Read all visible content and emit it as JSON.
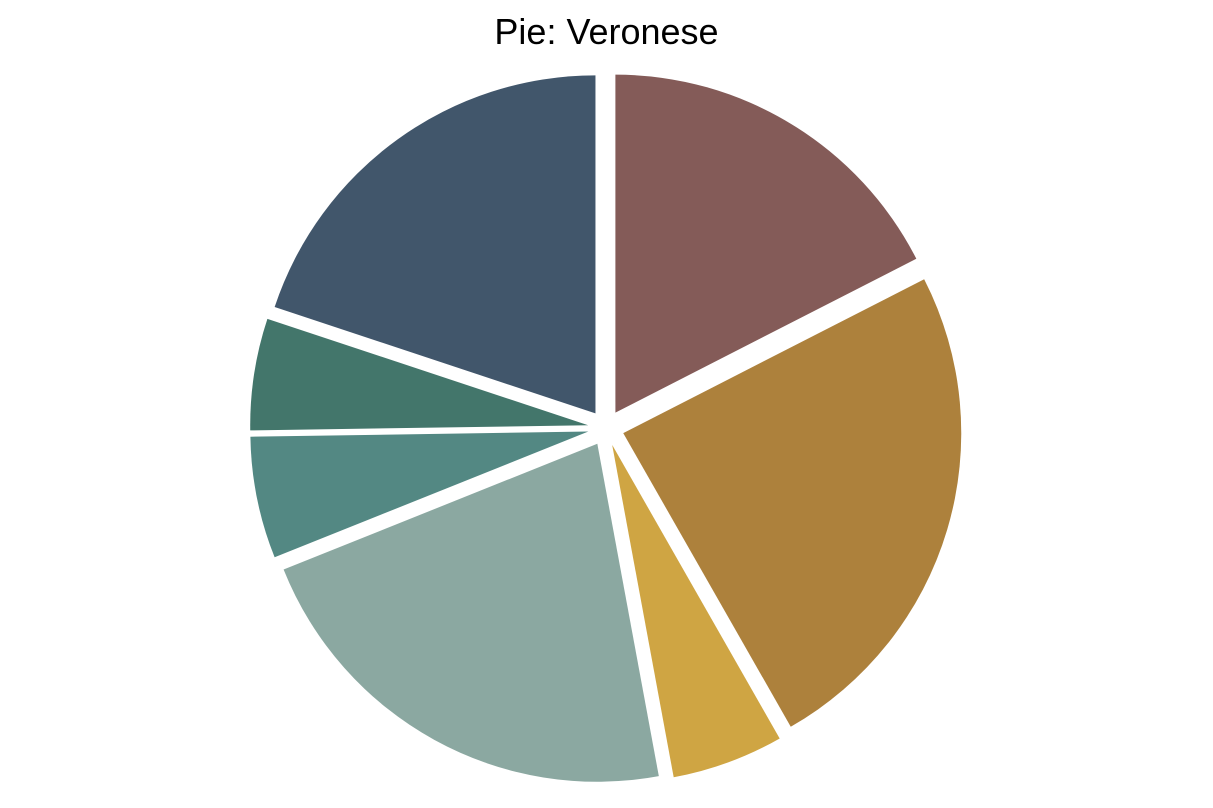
{
  "chart_data": {
    "type": "pie",
    "title": "Pie: Veronese",
    "labels_shown": false,
    "legend": "none",
    "slices": [
      {
        "value": 18.0,
        "color": "#845B58"
      },
      {
        "value": 25.0,
        "color": "#AD813C"
      },
      {
        "value": 5.5,
        "color": "#CFA543"
      },
      {
        "value": 22.5,
        "color": "#8BA8A1"
      },
      {
        "value": 6.0,
        "color": "#538883"
      },
      {
        "value": 5.5,
        "color": "#43766B"
      },
      {
        "value": 20.5,
        "color": "#41566B"
      }
    ]
  }
}
